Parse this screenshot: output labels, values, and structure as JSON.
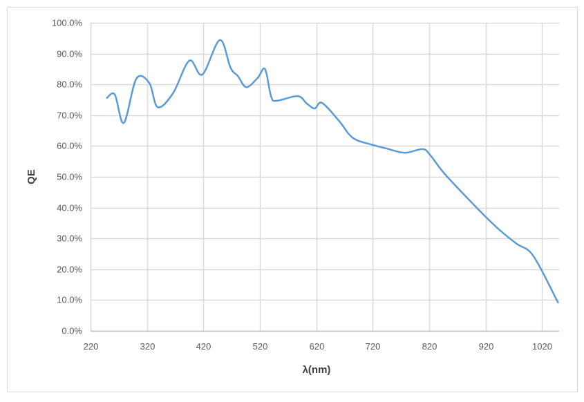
{
  "chart_data": {
    "type": "line",
    "title": "",
    "xlabel": "λ(nm)",
    "ylabel": "QE",
    "xlim": [
      220,
      1050
    ],
    "ylim": [
      0,
      100
    ],
    "xticks": [
      220,
      320,
      420,
      520,
      620,
      720,
      820,
      920,
      1020
    ],
    "yticks": [
      0,
      10,
      20,
      30,
      40,
      50,
      60,
      70,
      80,
      90,
      100
    ],
    "xtick_labels": [
      "220",
      "320",
      "420",
      "520",
      "620",
      "720",
      "820",
      "920",
      "1020"
    ],
    "ytick_labels": [
      "0.0%",
      "10.0%",
      "20.0%",
      "30.0%",
      "40.0%",
      "50.0%",
      "60.0%",
      "70.0%",
      "80.0%",
      "90.0%",
      "100.0%"
    ],
    "grid": true,
    "legend": "none",
    "line_color": "#5b9bd5",
    "series": [
      {
        "x": [
          249,
          263,
          279,
          301,
          324,
          339,
          366,
          395,
          418,
          449,
          468,
          481,
          496,
          516,
          529,
          540,
          550,
          587,
          603,
          617,
          630,
          660,
          685,
          721,
          744,
          777,
          808,
          822,
          851,
          930,
          973,
          1004,
          1048
        ],
        "y": [
          75.6,
          76.7,
          67.5,
          81.8,
          80.5,
          72.6,
          77.1,
          87.7,
          83.2,
          94.4,
          85.4,
          82.7,
          79.1,
          82.1,
          85.0,
          76.0,
          74.7,
          76.2,
          73.8,
          72.2,
          74.0,
          68.2,
          62.6,
          60.3,
          59.2,
          57.8,
          59.0,
          57.0,
          50.2,
          35.2,
          28.5,
          24.4,
          9.2
        ]
      }
    ]
  }
}
